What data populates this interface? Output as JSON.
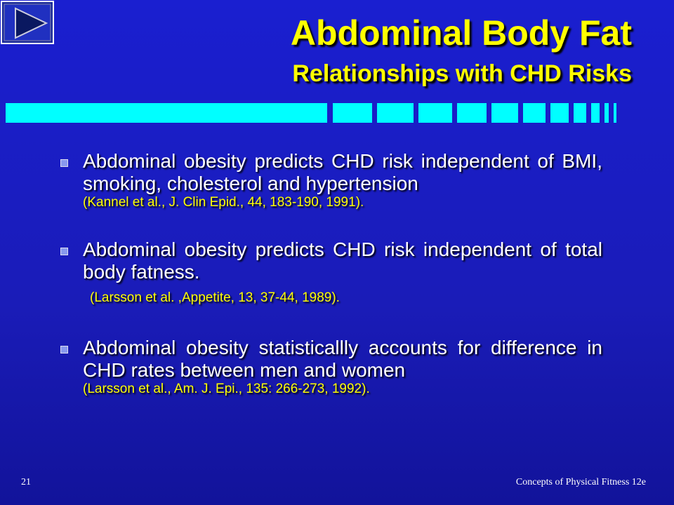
{
  "header": {
    "title": "Abdominal Body Fat",
    "subtitle": "Relationships with CHD Risks"
  },
  "bullets": [
    {
      "text": "Abdominal obesity predicts CHD risk independent of BMI, smoking, cholesterol and hypertension",
      "citation": "(Kannel et al., J. Clin Epid., 44, 183-190, 1991)."
    },
    {
      "text": "Abdominal obesity predicts CHD risk independent of total body fatness.",
      "citation": "(Larsson et al. ,Appetite, 13, 37-44, 1989)."
    },
    {
      "text": "Abdominal obesity statisticallly accounts for difference in CHD rates between men and women",
      "citation": "(Larsson et al., Am. J. Epi., 135: 266-273, 1992)."
    }
  ],
  "footer": {
    "page": "21",
    "book": "Concepts of Physical Fitness 12e"
  }
}
